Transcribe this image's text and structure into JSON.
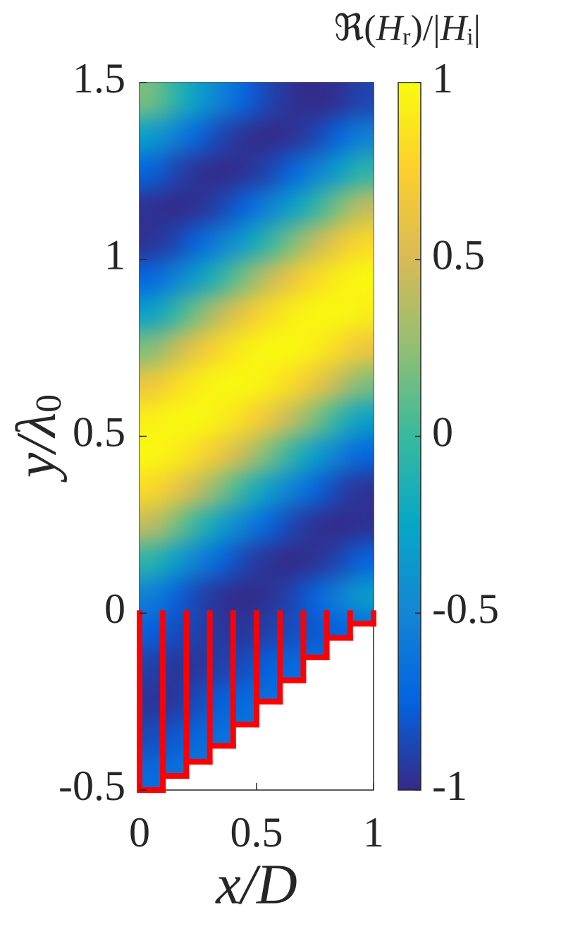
{
  "chart_data": {
    "type": "heatmap",
    "x": [
      0.05,
      0.15,
      0.25,
      0.35,
      0.45,
      0.55,
      0.65,
      0.75,
      0.85,
      0.95
    ],
    "y": [
      -0.45,
      -0.35,
      -0.25,
      -0.15,
      -0.05,
      0.05,
      0.15,
      0.25,
      0.35,
      0.45,
      0.55,
      0.65,
      0.75,
      0.85,
      0.95,
      1.05,
      1.15,
      1.25,
      1.35,
      1.45
    ],
    "z": [
      [
        -0.7,
        -0.65,
        -0.6,
        null,
        null,
        null,
        null,
        null,
        null,
        null
      ],
      [
        -0.85,
        -0.8,
        -0.7,
        -0.65,
        -0.6,
        null,
        null,
        null,
        null,
        null
      ],
      [
        -0.95,
        -0.95,
        -0.85,
        -0.75,
        -0.7,
        -0.65,
        null,
        null,
        null,
        null
      ],
      [
        -0.9,
        -0.95,
        -0.95,
        -0.9,
        -0.85,
        -0.75,
        -0.7,
        -0.65,
        null,
        null
      ],
      [
        -0.75,
        -0.85,
        -0.9,
        -0.95,
        -0.95,
        -0.9,
        -0.85,
        -0.8,
        -0.75,
        -0.7
      ],
      [
        -0.54,
        -0.73,
        -0.88,
        -0.97,
        -1,
        -0.97,
        -0.88,
        -0.73,
        -0.54,
        -0.31
      ],
      [
        -0.06,
        -0.31,
        -0.54,
        -0.73,
        -0.88,
        -0.97,
        -1,
        -0.97,
        -0.88,
        -0.73
      ],
      [
        0.43,
        0.19,
        -0.06,
        -0.31,
        -0.54,
        -0.73,
        -0.88,
        -0.97,
        -1,
        -0.97
      ],
      [
        0.81,
        0.64,
        0.43,
        0.19,
        -0.06,
        -0.31,
        -0.54,
        -0.73,
        -0.88,
        -0.97
      ],
      [
        0.99,
        0.93,
        0.81,
        0.64,
        0.43,
        0.19,
        -0.06,
        -0.31,
        -0.54,
        -0.73
      ],
      [
        0.93,
        0.99,
        0.99,
        0.93,
        0.81,
        0.64,
        0.43,
        0.19,
        -0.06,
        -0.31
      ],
      [
        0.64,
        0.81,
        0.93,
        0.99,
        0.99,
        0.93,
        0.81,
        0.64,
        0.43,
        0.19
      ],
      [
        0.19,
        0.43,
        0.64,
        0.81,
        0.93,
        0.99,
        0.99,
        0.93,
        0.81,
        0.64
      ],
      [
        -0.31,
        -0.06,
        0.19,
        0.43,
        0.64,
        0.81,
        0.93,
        0.99,
        0.99,
        0.93
      ],
      [
        -0.73,
        -0.54,
        -0.31,
        -0.06,
        0.19,
        0.43,
        0.64,
        0.81,
        0.93,
        0.99
      ],
      [
        -0.97,
        -0.88,
        -0.73,
        -0.54,
        -0.31,
        -0.06,
        0.19,
        0.43,
        0.64,
        0.81
      ],
      [
        -0.97,
        -1,
        -0.97,
        -0.88,
        -0.73,
        -0.54,
        -0.31,
        -0.06,
        0.19,
        0.43
      ],
      [
        -0.73,
        -0.88,
        -0.97,
        -1,
        -0.97,
        -0.88,
        -0.73,
        -0.54,
        -0.31,
        -0.06
      ],
      [
        -0.31,
        -0.54,
        -0.73,
        -0.88,
        -0.97,
        -1,
        -0.97,
        -0.88,
        -0.73,
        -0.54
      ],
      [
        0.19,
        -0.06,
        -0.31,
        -0.54,
        -0.73,
        -0.88,
        -0.97,
        -1,
        -0.97,
        -0.88
      ]
    ],
    "xlim": [
      0,
      1
    ],
    "ylim": [
      -0.5,
      1.5
    ],
    "xticks": [
      0,
      0.5,
      1
    ],
    "yticks": [
      -0.5,
      0,
      0.5,
      1,
      1.5
    ],
    "xlabel": "x/D",
    "ylabel": [
      "y/λ",
      "0"
    ],
    "colorbar": {
      "label": [
        "ℜ(",
        "H",
        "r",
        ")/|",
        "H",
        "i",
        "|"
      ],
      "lim": [
        -1,
        1
      ],
      "ticks": [
        -1,
        -0.5,
        0,
        0.5,
        1
      ]
    },
    "colormap": [
      "#352a87",
      "#0363e1",
      "#1485d4",
      "#06a7c6",
      "#38b99e",
      "#92bf73",
      "#d9ba56",
      "#fcce2e",
      "#f9fb0e"
    ],
    "grating": {
      "color": "#ff0000",
      "x": [
        0,
        0.1,
        0.2,
        0.3,
        0.4,
        0.5,
        0.6,
        0.7,
        0.8,
        0.9
      ],
      "depth": [
        -0.5,
        -0.46,
        -0.42,
        -0.375,
        -0.315,
        -0.25,
        -0.19,
        -0.125,
        -0.07,
        -0.03
      ]
    }
  }
}
